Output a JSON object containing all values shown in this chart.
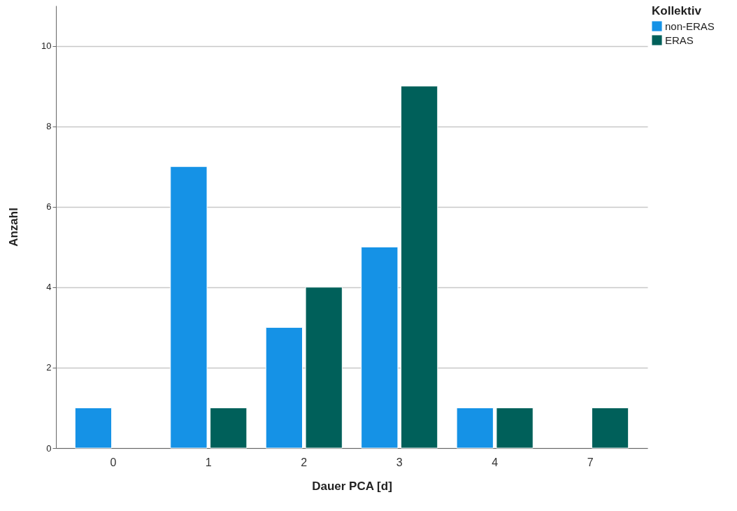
{
  "chart_data": {
    "type": "bar",
    "xlabel": "Dauer PCA [d]",
    "ylabel": "Anzahl",
    "legend_title": "Kollektiv",
    "categories": [
      "0",
      "1",
      "2",
      "3",
      "4",
      "7"
    ],
    "series": [
      {
        "name": "non-ERAS",
        "color": "#1592e6",
        "values": [
          1,
          7,
          3,
          5,
          1,
          null
        ]
      },
      {
        "name": "ERAS",
        "color": "#00605a",
        "values": [
          null,
          1,
          4,
          9,
          1,
          1
        ]
      }
    ],
    "ylim": [
      0,
      11
    ],
    "yticks": [
      0,
      2,
      4,
      6,
      8,
      10
    ],
    "grid": "y",
    "legend": "top right"
  }
}
